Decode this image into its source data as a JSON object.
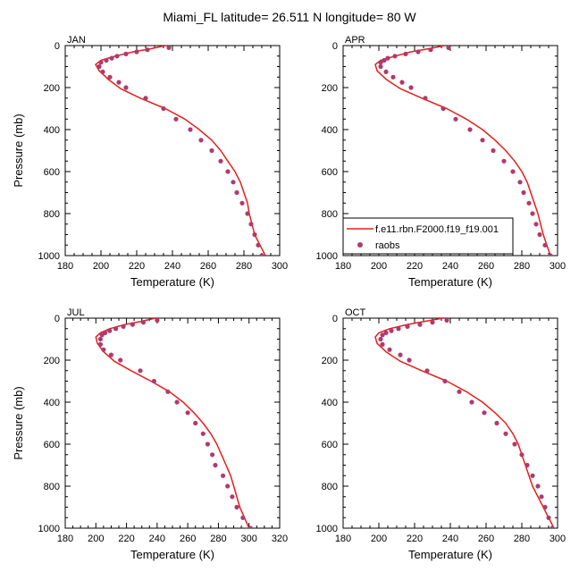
{
  "figure": {
    "title": "Miami_FL  latitude= 26.511 N longitude= 80 W"
  },
  "legend": {
    "line_label": "f.e11.rbn.F2000.f19_f19.001",
    "dot_label": "raobs",
    "placement": "inside APR panel, lower-left"
  },
  "colors": {
    "model_line": "#e3201b",
    "raobs_dots": "#b03a6e",
    "frame": "#000000"
  },
  "chart_data": [
    {
      "type": "scatter",
      "panel": "JAN",
      "xlabel": "Temperature (K)",
      "ylabel": "Pressure (mb)",
      "xlim": [
        180,
        300
      ],
      "ylim": [
        1000,
        0
      ],
      "xticks": [
        180,
        200,
        220,
        240,
        260,
        280,
        300
      ],
      "yticks": [
        0,
        200,
        400,
        600,
        800,
        1000
      ],
      "series": [
        {
          "name": "f.e11.rbn.F2000.f19_f19.001",
          "kind": "line",
          "points": [
            [
              236,
              0
            ],
            [
              228,
              15
            ],
            [
              218,
              30
            ],
            [
              208,
              50
            ],
            [
              200,
              70
            ],
            [
              197,
              90
            ],
            [
              199,
              120
            ],
            [
              204,
              160
            ],
            [
              211,
              205
            ],
            [
              222,
              250
            ],
            [
              236,
              300
            ],
            [
              247,
              350
            ],
            [
              255,
              400
            ],
            [
              262,
              450
            ],
            [
              267,
              500
            ],
            [
              271,
              550
            ],
            [
              275,
              600
            ],
            [
              278,
              650
            ],
            [
              280,
              700
            ],
            [
              282,
              750
            ],
            [
              283,
              800
            ],
            [
              284.5,
              850
            ],
            [
              286,
              900
            ],
            [
              289,
              950
            ],
            [
              292,
              1000
            ]
          ]
        },
        {
          "name": "raobs",
          "kind": "scatter",
          "points": [
            [
              238,
              10
            ],
            [
              226,
              20
            ],
            [
              220,
              30
            ],
            [
              214,
              40
            ],
            [
              209,
              50
            ],
            [
              206,
              60
            ],
            [
              203,
              70
            ],
            [
              200,
              80
            ],
            [
              199,
              100
            ],
            [
              201,
              125
            ],
            [
              205,
              150
            ],
            [
              210,
              175
            ],
            [
              214,
              200
            ],
            [
              225,
              250
            ],
            [
              235,
              300
            ],
            [
              242,
              350
            ],
            [
              250,
              400
            ],
            [
              256,
              450
            ],
            [
              262,
              500
            ],
            [
              267,
              550
            ],
            [
              271,
              600
            ],
            [
              274,
              650
            ],
            [
              276,
              700
            ],
            [
              279,
              750
            ],
            [
              282,
              800
            ],
            [
              284,
              850
            ],
            [
              286,
              900
            ],
            [
              288,
              950
            ],
            [
              290,
              1000
            ]
          ]
        }
      ]
    },
    {
      "type": "scatter",
      "panel": "APR",
      "xlabel": "Temperature (K)",
      "ylabel": "",
      "xlim": [
        180,
        300
      ],
      "ylim": [
        1000,
        0
      ],
      "xticks": [
        180,
        200,
        220,
        240,
        260,
        280,
        300
      ],
      "yticks": [
        0,
        200,
        400,
        600,
        800,
        1000
      ],
      "series": [
        {
          "name": "f.e11.rbn.F2000.f19_f19.001",
          "kind": "line",
          "points": [
            [
              237,
              0
            ],
            [
              228,
              15
            ],
            [
              218,
              30
            ],
            [
              209,
              50
            ],
            [
              201,
              70
            ],
            [
              198,
              90
            ],
            [
              199,
              120
            ],
            [
              204,
              160
            ],
            [
              212,
              205
            ],
            [
              224,
              250
            ],
            [
              238,
              300
            ],
            [
              249,
              350
            ],
            [
              258,
              400
            ],
            [
              265,
              450
            ],
            [
              271,
              500
            ],
            [
              276,
              550
            ],
            [
              280,
              600
            ],
            [
              283,
              650
            ],
            [
              285,
              700
            ],
            [
              287,
              750
            ],
            [
              289,
              800
            ],
            [
              290.5,
              850
            ],
            [
              292,
              900
            ],
            [
              294,
              950
            ],
            [
              296,
              1000
            ]
          ]
        },
        {
          "name": "raobs",
          "kind": "scatter",
          "points": [
            [
              239,
              10
            ],
            [
              229,
              20
            ],
            [
              222,
              30
            ],
            [
              215,
              40
            ],
            [
              209,
              50
            ],
            [
              205,
              60
            ],
            [
              203,
              70
            ],
            [
              201,
              80
            ],
            [
              201,
              100
            ],
            [
              204,
              125
            ],
            [
              208,
              150
            ],
            [
              213,
              175
            ],
            [
              218,
              200
            ],
            [
              226,
              250
            ],
            [
              236,
              300
            ],
            [
              243,
              350
            ],
            [
              251,
              400
            ],
            [
              258,
              450
            ],
            [
              264,
              500
            ],
            [
              270,
              550
            ],
            [
              275,
              600
            ],
            [
              279,
              650
            ],
            [
              281,
              700
            ],
            [
              284,
              750
            ],
            [
              286,
              800
            ],
            [
              288,
              850
            ],
            [
              290,
              900
            ],
            [
              293,
              950
            ],
            [
              296,
              1000
            ]
          ]
        }
      ]
    },
    {
      "type": "scatter",
      "panel": "JUL",
      "xlabel": "Temperature (K)",
      "ylabel": "Pressure (mb)",
      "xlim": [
        180,
        320
      ],
      "ylim": [
        1000,
        0
      ],
      "xticks": [
        180,
        200,
        220,
        240,
        260,
        280,
        300,
        320
      ],
      "yticks": [
        0,
        200,
        400,
        600,
        800,
        1000
      ],
      "series": [
        {
          "name": "f.e11.rbn.F2000.f19_f19.001",
          "kind": "line",
          "points": [
            [
              239,
              0
            ],
            [
              230,
              15
            ],
            [
              219,
              30
            ],
            [
              209,
              50
            ],
            [
              203,
              70
            ],
            [
              200,
              90
            ],
            [
              201,
              120
            ],
            [
              205,
              160
            ],
            [
              212,
              205
            ],
            [
              223,
              250
            ],
            [
              236,
              300
            ],
            [
              248,
              350
            ],
            [
              257,
              400
            ],
            [
              264,
              450
            ],
            [
              270,
              500
            ],
            [
              275,
              550
            ],
            [
              279,
              600
            ],
            [
              282,
              650
            ],
            [
              285,
              700
            ],
            [
              288,
              750
            ],
            [
              290,
              800
            ],
            [
              292,
              850
            ],
            [
              294,
              900
            ],
            [
              297,
              950
            ],
            [
              300,
              1000
            ]
          ]
        },
        {
          "name": "raobs",
          "kind": "scatter",
          "points": [
            [
              240,
              10
            ],
            [
              231,
              20
            ],
            [
              224,
              30
            ],
            [
              218,
              40
            ],
            [
              213,
              50
            ],
            [
              209,
              60
            ],
            [
              206,
              70
            ],
            [
              204,
              80
            ],
            [
              203,
              100
            ],
            [
              203,
              125
            ],
            [
              205,
              150
            ],
            [
              210,
              175
            ],
            [
              216,
              200
            ],
            [
              229,
              250
            ],
            [
              238,
              300
            ],
            [
              247,
              350
            ],
            [
              253,
              400
            ],
            [
              260,
              450
            ],
            [
              265,
              500
            ],
            [
              270,
              550
            ],
            [
              273,
              600
            ],
            [
              276,
              650
            ],
            [
              278,
              700
            ],
            [
              283,
              750
            ],
            [
              286,
              800
            ],
            [
              289,
              850
            ],
            [
              292,
              900
            ],
            [
              296,
              950
            ],
            [
              301,
              1000
            ]
          ]
        }
      ]
    },
    {
      "type": "scatter",
      "panel": "OCT",
      "xlabel": "Temperature (K)",
      "ylabel": "",
      "xlim": [
        180,
        300
      ],
      "ylim": [
        1000,
        0
      ],
      "xticks": [
        180,
        200,
        220,
        240,
        260,
        280,
        300
      ],
      "yticks": [
        0,
        200,
        400,
        600,
        800,
        1000
      ],
      "series": [
        {
          "name": "f.e11.rbn.F2000.f19_f19.001",
          "kind": "line",
          "points": [
            [
              236,
              0
            ],
            [
              226,
              15
            ],
            [
              216,
              30
            ],
            [
              206,
              50
            ],
            [
              200,
              70
            ],
            [
              198,
              90
            ],
            [
              199,
              120
            ],
            [
              204,
              160
            ],
            [
              212,
              205
            ],
            [
              224,
              250
            ],
            [
              238,
              300
            ],
            [
              249,
              350
            ],
            [
              258,
              400
            ],
            [
              265,
              450
            ],
            [
              271,
              500
            ],
            [
              275,
              550
            ],
            [
              278,
              600
            ],
            [
              280,
              650
            ],
            [
              282,
              700
            ],
            [
              284,
              750
            ],
            [
              286,
              800
            ],
            [
              289,
              850
            ],
            [
              292,
              900
            ],
            [
              295,
              950
            ],
            [
              298,
              1000
            ]
          ]
        },
        {
          "name": "raobs",
          "kind": "scatter",
          "points": [
            [
              238,
              10
            ],
            [
              230,
              20
            ],
            [
              223,
              30
            ],
            [
              216,
              40
            ],
            [
              211,
              50
            ],
            [
              207,
              60
            ],
            [
              204,
              70
            ],
            [
              202,
              80
            ],
            [
              201,
              100
            ],
            [
              202,
              125
            ],
            [
              206,
              150
            ],
            [
              212,
              175
            ],
            [
              217,
              200
            ],
            [
              227,
              250
            ],
            [
              237,
              300
            ],
            [
              245,
              350
            ],
            [
              252,
              400
            ],
            [
              259,
              450
            ],
            [
              266,
              500
            ],
            [
              271,
              550
            ],
            [
              276,
              600
            ],
            [
              280,
              650
            ],
            [
              283,
              700
            ],
            [
              286,
              750
            ],
            [
              289,
              800
            ],
            [
              291,
              850
            ],
            [
              293,
              900
            ],
            [
              295,
              950
            ],
            [
              297,
              1000
            ]
          ]
        }
      ]
    }
  ]
}
